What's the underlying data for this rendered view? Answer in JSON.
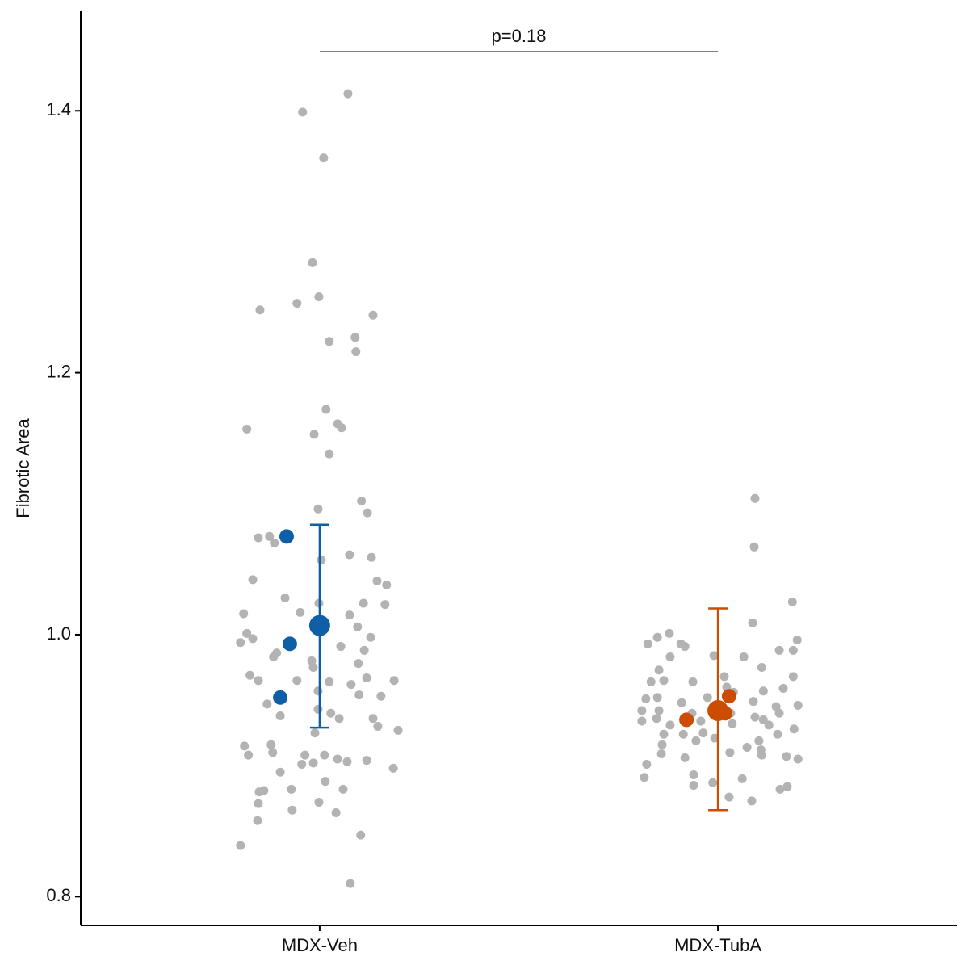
{
  "chart_data": {
    "type": "scatter",
    "y_label": "Fibrotic Area",
    "xlim": [
      0.4,
      2.6
    ],
    "xticks": [
      {
        "value": 1,
        "label": "MDX-Veh"
      },
      {
        "value": 2,
        "label": "MDX-TubA"
      }
    ],
    "ylim": [
      0.778,
      1.476
    ],
    "yticks": [
      0.8,
      {
        "value": 1,
        "label": "1.0"
      },
      1.2,
      1.4
    ],
    "grid": false,
    "cells": [
      {
        "color": "#b3b3b3",
        "x": [
          1.071,
          0.957,
          1.01,
          0.982,
          0.998,
          0.943,
          0.85,
          1.134,
          1.089,
          1.024,
          1.091,
          1.016,
          0.817,
          1.045,
          1.055,
          0.986,
          1.024,
          1.105,
          1.12,
          0.996,
          0.846,
          0.874,
          0.886,
          1.075,
          1.13,
          1.004,
          0.832,
          1.144,
          1.168,
          0.913,
          0.998,
          1.11,
          1.164,
          0.809,
          0.951,
          1.075,
          1.095,
          0.817,
          0.801,
          0.832,
          1.128,
          1.053,
          0.892,
          0.884,
          0.98,
          1.112,
          0.984,
          1.097,
          0.825,
          0.846,
          1.024,
          0.943,
          1.187,
          1.079,
          1.118,
          0.996,
          1.154,
          0.868,
          1.099,
          0.996,
          1.028,
          1.049,
          0.901,
          1.134,
          1.146,
          1.197,
          0.988,
          0.811,
          0.878,
          0.821,
          0.882,
          1.012,
          0.963,
          1.045,
          1.069,
          1.118,
          0.984,
          0.955,
          1.185,
          0.901,
          1.014,
          0.848,
          0.929,
          1.059,
          0.86,
          0.998,
          0.846,
          1.041,
          0.931,
          0.844,
          1.103,
          0.801,
          1.077
        ],
        "values": [
          1.413,
          1.399,
          1.364,
          1.284,
          1.258,
          1.253,
          1.248,
          1.244,
          1.227,
          1.224,
          1.216,
          1.172,
          1.157,
          1.161,
          1.158,
          1.153,
          1.138,
          1.102,
          1.093,
          1.096,
          1.074,
          1.075,
          1.07,
          1.061,
          1.059,
          1.057,
          1.042,
          1.041,
          1.038,
          1.028,
          1.024,
          1.024,
          1.023,
          1.016,
          1.017,
          1.015,
          1.006,
          1.001,
          0.994,
          0.997,
          0.998,
          0.991,
          0.986,
          0.983,
          0.98,
          0.988,
          0.975,
          0.978,
          0.969,
          0.965,
          0.964,
          0.965,
          0.965,
          0.962,
          0.967,
          0.957,
          0.953,
          0.947,
          0.954,
          0.943,
          0.94,
          0.936,
          0.938,
          0.936,
          0.93,
          0.927,
          0.925,
          0.915,
          0.916,
          0.908,
          0.91,
          0.908,
          0.908,
          0.905,
          0.903,
          0.904,
          0.902,
          0.901,
          0.898,
          0.895,
          0.888,
          0.88,
          0.882,
          0.882,
          0.881,
          0.872,
          0.871,
          0.864,
          0.866,
          0.858,
          0.847,
          0.839,
          0.81
        ]
      },
      {
        "color": "#b3b3b3",
        "x": [
          2.093,
          2.091,
          2.187,
          2.087,
          1.878,
          1.848,
          1.824,
          1.907,
          1.917,
          2.199,
          2.154,
          2.065,
          1.99,
          2.189,
          1.88,
          1.852,
          2.016,
          2.11,
          2.189,
          1.832,
          1.864,
          1.937,
          2.022,
          2.164,
          2.114,
          1.819,
          1.848,
          1.974,
          2.039,
          1.909,
          2.089,
          2.146,
          2.201,
          1.809,
          1.852,
          1.935,
          2.032,
          2.093,
          2.154,
          1.809,
          1.846,
          1.957,
          2.114,
          2.128,
          2.191,
          1.88,
          2.036,
          1.864,
          1.913,
          1.963,
          2.15,
          1.992,
          2.103,
          1.86,
          1.945,
          2.073,
          2.108,
          1.858,
          1.917,
          2.03,
          2.11,
          2.172,
          2.201,
          1.821,
          1.939,
          2.061,
          1.815,
          1.987,
          1.939,
          2.174,
          2.156,
          2.028,
          2.085
        ],
        "values": [
          1.104,
          1.067,
          1.025,
          1.009,
          1.001,
          0.998,
          0.993,
          0.993,
          0.991,
          0.996,
          0.988,
          0.983,
          0.984,
          0.988,
          0.983,
          0.973,
          0.968,
          0.975,
          0.968,
          0.964,
          0.965,
          0.964,
          0.96,
          0.959,
          0.957,
          0.951,
          0.952,
          0.952,
          0.956,
          0.948,
          0.949,
          0.945,
          0.946,
          0.942,
          0.942,
          0.94,
          0.94,
          0.937,
          0.94,
          0.934,
          0.936,
          0.934,
          0.935,
          0.931,
          0.928,
          0.931,
          0.932,
          0.924,
          0.924,
          0.925,
          0.924,
          0.921,
          0.919,
          0.916,
          0.919,
          0.914,
          0.912,
          0.909,
          0.906,
          0.91,
          0.908,
          0.907,
          0.905,
          0.901,
          0.893,
          0.89,
          0.891,
          0.887,
          0.885,
          0.884,
          0.882,
          0.876,
          0.873
        ]
      }
    ],
    "replicates": [
      {
        "color": "#0f5fa6",
        "x": [
          0.917,
          0.925,
          0.901
        ],
        "values": [
          1.075,
          0.993,
          0.952
        ]
      },
      {
        "color": "#cc4c02",
        "x": [
          1.921,
          2.028,
          2.018,
          1.996
        ],
        "values": [
          0.935,
          0.953,
          0.94,
          0.943
        ]
      }
    ],
    "means": [
      {
        "color": "#0f5fa6",
        "x": 1,
        "value": 1.007,
        "lower": 0.929,
        "upper": 1.084
      },
      {
        "color": "#cc4c02",
        "x": 2,
        "value": 0.942,
        "lower": 0.866,
        "upper": 1.02
      }
    ],
    "annotation": {
      "text": "p=0.18",
      "x": [
        1,
        2
      ],
      "y": 1.445
    }
  }
}
